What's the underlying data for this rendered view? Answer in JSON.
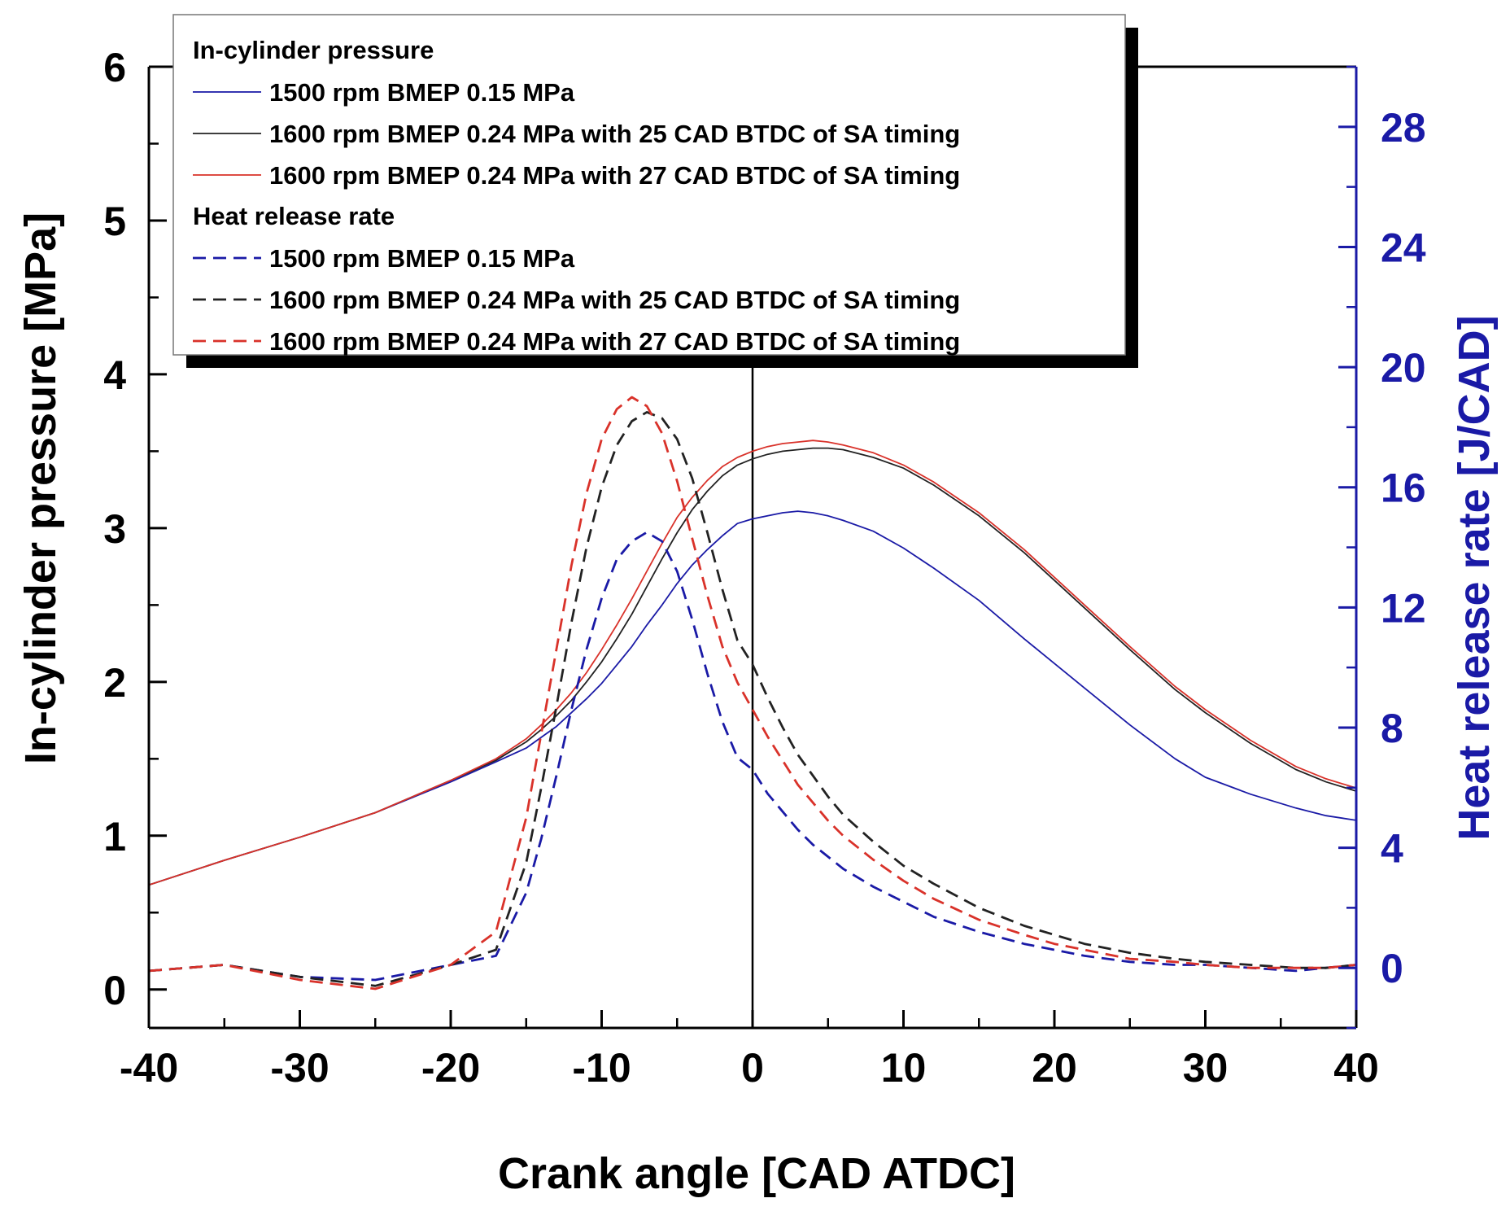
{
  "chart_data": {
    "type": "line",
    "title": "",
    "xlabel": "Crank angle [CAD ATDC]",
    "ylabel": "In-cylinder pressure [MPa]",
    "y2label": "Heat release rate [J/CAD]",
    "xlim": [
      -40,
      40
    ],
    "ylim": [
      -0.25,
      6
    ],
    "y2lim": [
      -2,
      30
    ],
    "xticks": [
      -40,
      -30,
      -20,
      -10,
      0,
      10,
      20,
      30,
      40
    ],
    "yticks": [
      0,
      1,
      2,
      3,
      4,
      5,
      6
    ],
    "y2ticks": [
      0,
      4,
      8,
      12,
      16,
      20,
      24,
      28
    ],
    "x_minor_step": 5,
    "y_minor_step": 0.5,
    "y2_minor_step": 2,
    "vline_x": 0,
    "colors": {
      "blue": "#1a1aa6",
      "black": "#222222",
      "red": "#d9322a",
      "axis_right": "#1a1aa6"
    },
    "legend": {
      "position": "top-left",
      "groups": [
        {
          "heading": "In-cylinder pressure",
          "entries": [
            {
              "label": "1500 rpm BMEP 0.15 MPa",
              "color": "blue",
              "dash": "solid"
            },
            {
              "label": "1600 rpm BMEP 0.24 MPa with 25 CAD BTDC of SA timing",
              "color": "black",
              "dash": "solid"
            },
            {
              "label": "1600 rpm BMEP 0.24 MPa with 27 CAD BTDC of SA timing",
              "color": "red",
              "dash": "solid"
            }
          ]
        },
        {
          "heading": "Heat release rate",
          "entries": [
            {
              "label": "1500 rpm BMEP 0.15 MPa",
              "color": "blue",
              "dash": "dashed"
            },
            {
              "label": "1600 rpm BMEP 0.24 MPa with 25 CAD BTDC of SA timing",
              "color": "black",
              "dash": "dashed"
            },
            {
              "label": "1600 rpm BMEP 0.24 MPa with 27 CAD BTDC of SA timing",
              "color": "red",
              "dash": "dashed"
            }
          ]
        }
      ]
    },
    "x": [
      -40,
      -35,
      -30,
      -25,
      -20,
      -17,
      -15,
      -14,
      -13,
      -12,
      -11,
      -10,
      -9,
      -8,
      -7,
      -6,
      -5,
      -4,
      -3,
      -2,
      -1,
      0,
      1,
      2,
      3,
      4,
      5,
      6,
      8,
      10,
      12,
      15,
      18,
      20,
      22,
      25,
      28,
      30,
      33,
      36,
      38,
      40
    ],
    "series": [
      {
        "name": "1500 rpm BMEP 0.15 MPa",
        "quantity": "In-cylinder pressure",
        "axis": "left",
        "color": "blue",
        "dash": "solid",
        "values": [
          0.68,
          0.84,
          0.99,
          1.15,
          1.35,
          1.48,
          1.57,
          1.64,
          1.71,
          1.8,
          1.89,
          1.99,
          2.11,
          2.23,
          2.37,
          2.5,
          2.64,
          2.76,
          2.86,
          2.95,
          3.03,
          3.06,
          3.08,
          3.1,
          3.11,
          3.1,
          3.08,
          3.05,
          2.98,
          2.87,
          2.74,
          2.53,
          2.28,
          2.12,
          1.96,
          1.72,
          1.5,
          1.38,
          1.27,
          1.18,
          1.13,
          1.1
        ]
      },
      {
        "name": "1600 rpm BMEP 0.24 MPa with 25 CAD BTDC of SA timing",
        "quantity": "In-cylinder pressure",
        "axis": "left",
        "color": "black",
        "dash": "solid",
        "values": [
          0.68,
          0.84,
          0.99,
          1.15,
          1.36,
          1.49,
          1.61,
          1.69,
          1.78,
          1.88,
          2.0,
          2.13,
          2.28,
          2.44,
          2.62,
          2.8,
          2.97,
          3.12,
          3.24,
          3.34,
          3.41,
          3.45,
          3.48,
          3.5,
          3.51,
          3.52,
          3.52,
          3.51,
          3.46,
          3.39,
          3.28,
          3.08,
          2.84,
          2.66,
          2.48,
          2.21,
          1.95,
          1.8,
          1.6,
          1.43,
          1.35,
          1.29
        ]
      },
      {
        "name": "1600 rpm BMEP 0.24 MPa with 27 CAD BTDC of SA timing",
        "quantity": "In-cylinder pressure",
        "axis": "left",
        "color": "red",
        "dash": "solid",
        "values": [
          0.68,
          0.84,
          0.99,
          1.15,
          1.36,
          1.5,
          1.63,
          1.72,
          1.82,
          1.93,
          2.06,
          2.21,
          2.37,
          2.54,
          2.72,
          2.9,
          3.07,
          3.2,
          3.31,
          3.4,
          3.46,
          3.5,
          3.53,
          3.55,
          3.56,
          3.57,
          3.56,
          3.54,
          3.49,
          3.41,
          3.3,
          3.1,
          2.86,
          2.68,
          2.5,
          2.23,
          1.97,
          1.82,
          1.62,
          1.45,
          1.37,
          1.31
        ]
      },
      {
        "name": "1500 rpm BMEP 0.15 MPa",
        "quantity": "Heat release rate",
        "axis": "right",
        "color": "blue",
        "dash": "dashed",
        "values": [
          -0.1,
          0.1,
          -0.3,
          -0.4,
          0.1,
          0.4,
          2.5,
          4.3,
          6.4,
          8.6,
          10.6,
          12.3,
          13.6,
          14.2,
          14.5,
          14.2,
          13.2,
          11.6,
          9.8,
          8.2,
          7.0,
          6.6,
          5.8,
          5.2,
          4.6,
          4.1,
          3.7,
          3.3,
          2.7,
          2.2,
          1.7,
          1.2,
          0.8,
          0.6,
          0.4,
          0.2,
          0.1,
          0.1,
          0.0,
          -0.1,
          0.0,
          0.1
        ]
      },
      {
        "name": "1600 rpm BMEP 0.24 MPa with 25 CAD BTDC of SA timing",
        "quantity": "Heat release rate",
        "axis": "right",
        "color": "black",
        "dash": "dashed",
        "values": [
          -0.1,
          0.1,
          -0.3,
          -0.6,
          0.1,
          0.6,
          3.5,
          6.0,
          8.7,
          11.5,
          14.0,
          16.0,
          17.4,
          18.2,
          18.5,
          18.3,
          17.6,
          16.3,
          14.5,
          12.6,
          10.9,
          10.1,
          9.0,
          8.0,
          7.1,
          6.4,
          5.7,
          5.1,
          4.2,
          3.4,
          2.8,
          2.0,
          1.4,
          1.1,
          0.8,
          0.5,
          0.3,
          0.2,
          0.1,
          0.0,
          0.0,
          0.1
        ]
      },
      {
        "name": "1600 rpm BMEP 0.24 MPa with 27 CAD BTDC of SA timing",
        "quantity": "Heat release rate",
        "axis": "right",
        "color": "red",
        "dash": "dashed",
        "values": [
          -0.1,
          0.1,
          -0.4,
          -0.7,
          0.1,
          1.2,
          5.0,
          7.8,
          10.6,
          13.4,
          15.8,
          17.6,
          18.6,
          19.0,
          18.7,
          17.8,
          16.2,
          14.3,
          12.4,
          10.7,
          9.5,
          8.6,
          7.7,
          6.9,
          6.1,
          5.5,
          4.9,
          4.4,
          3.6,
          2.9,
          2.3,
          1.6,
          1.1,
          0.8,
          0.6,
          0.3,
          0.2,
          0.1,
          0.0,
          0.0,
          0.0,
          0.1
        ]
      }
    ]
  }
}
